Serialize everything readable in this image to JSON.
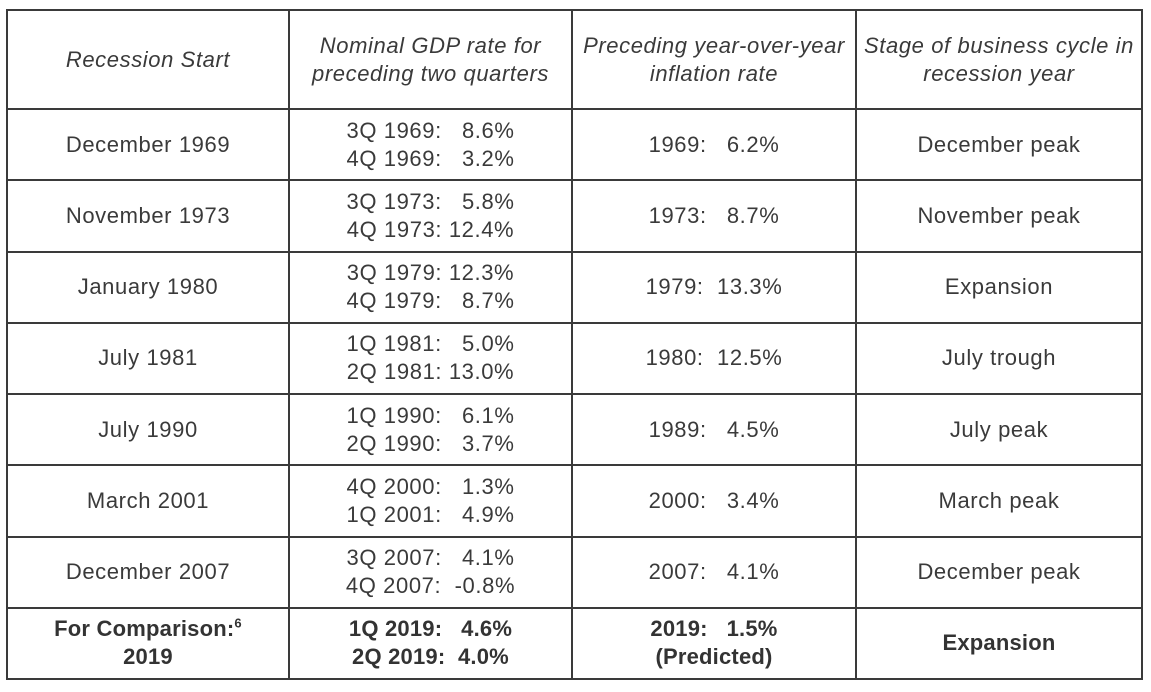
{
  "headers": [
    "Recession Start",
    "Nominal GDP rate for preceding two quarters",
    "Preceding year-over-year inflation rate",
    "Stage of business cycle in recession year"
  ],
  "rows": [
    {
      "start": "December 1969",
      "gdp_line1": "3Q 1969:   8.6%",
      "gdp_line2": "4Q 1969:   3.2%",
      "inflation_line1": "1969:   6.2%",
      "inflation_line2": "",
      "stage": "December peak"
    },
    {
      "start": "November 1973",
      "gdp_line1": "3Q 1973:   5.8%",
      "gdp_line2": "4Q 1973: 12.4%",
      "inflation_line1": "1973:   8.7%",
      "inflation_line2": "",
      "stage": "November peak"
    },
    {
      "start": "January 1980",
      "gdp_line1": "3Q 1979: 12.3%",
      "gdp_line2": "4Q 1979:   8.7%",
      "inflation_line1": "1979:  13.3%",
      "inflation_line2": "",
      "stage": "Expansion"
    },
    {
      "start": "July 1981",
      "gdp_line1": "1Q 1981:   5.0%",
      "gdp_line2": "2Q 1981: 13.0%",
      "inflation_line1": "1980:  12.5%",
      "inflation_line2": "",
      "stage": "July trough"
    },
    {
      "start": "July 1990",
      "gdp_line1": "1Q 1990:   6.1%",
      "gdp_line2": "2Q 1990:   3.7%",
      "inflation_line1": "1989:   4.5%",
      "inflation_line2": "",
      "stage": "July peak"
    },
    {
      "start": "March 2001",
      "gdp_line1": "4Q 2000:   1.3%",
      "gdp_line2": "1Q 2001:   4.9%",
      "inflation_line1": "2000:   3.4%",
      "inflation_line2": "",
      "stage": "March peak"
    },
    {
      "start": "December 2007",
      "gdp_line1": "3Q 2007:   4.1%",
      "gdp_line2": "4Q 2007:  -0.8%",
      "inflation_line1": "2007:   4.1%",
      "inflation_line2": "",
      "stage": "December peak"
    }
  ],
  "comparison": {
    "start_line1": "For Comparison:",
    "footnote": "6",
    "start_line2": "2019",
    "gdp_line1": "1Q 2019:   4.6%",
    "gdp_line2": "2Q 2019:  4.0%",
    "inflation_line1": "2019:   1.5%",
    "inflation_line2": "(Predicted)",
    "stage": "Expansion"
  }
}
